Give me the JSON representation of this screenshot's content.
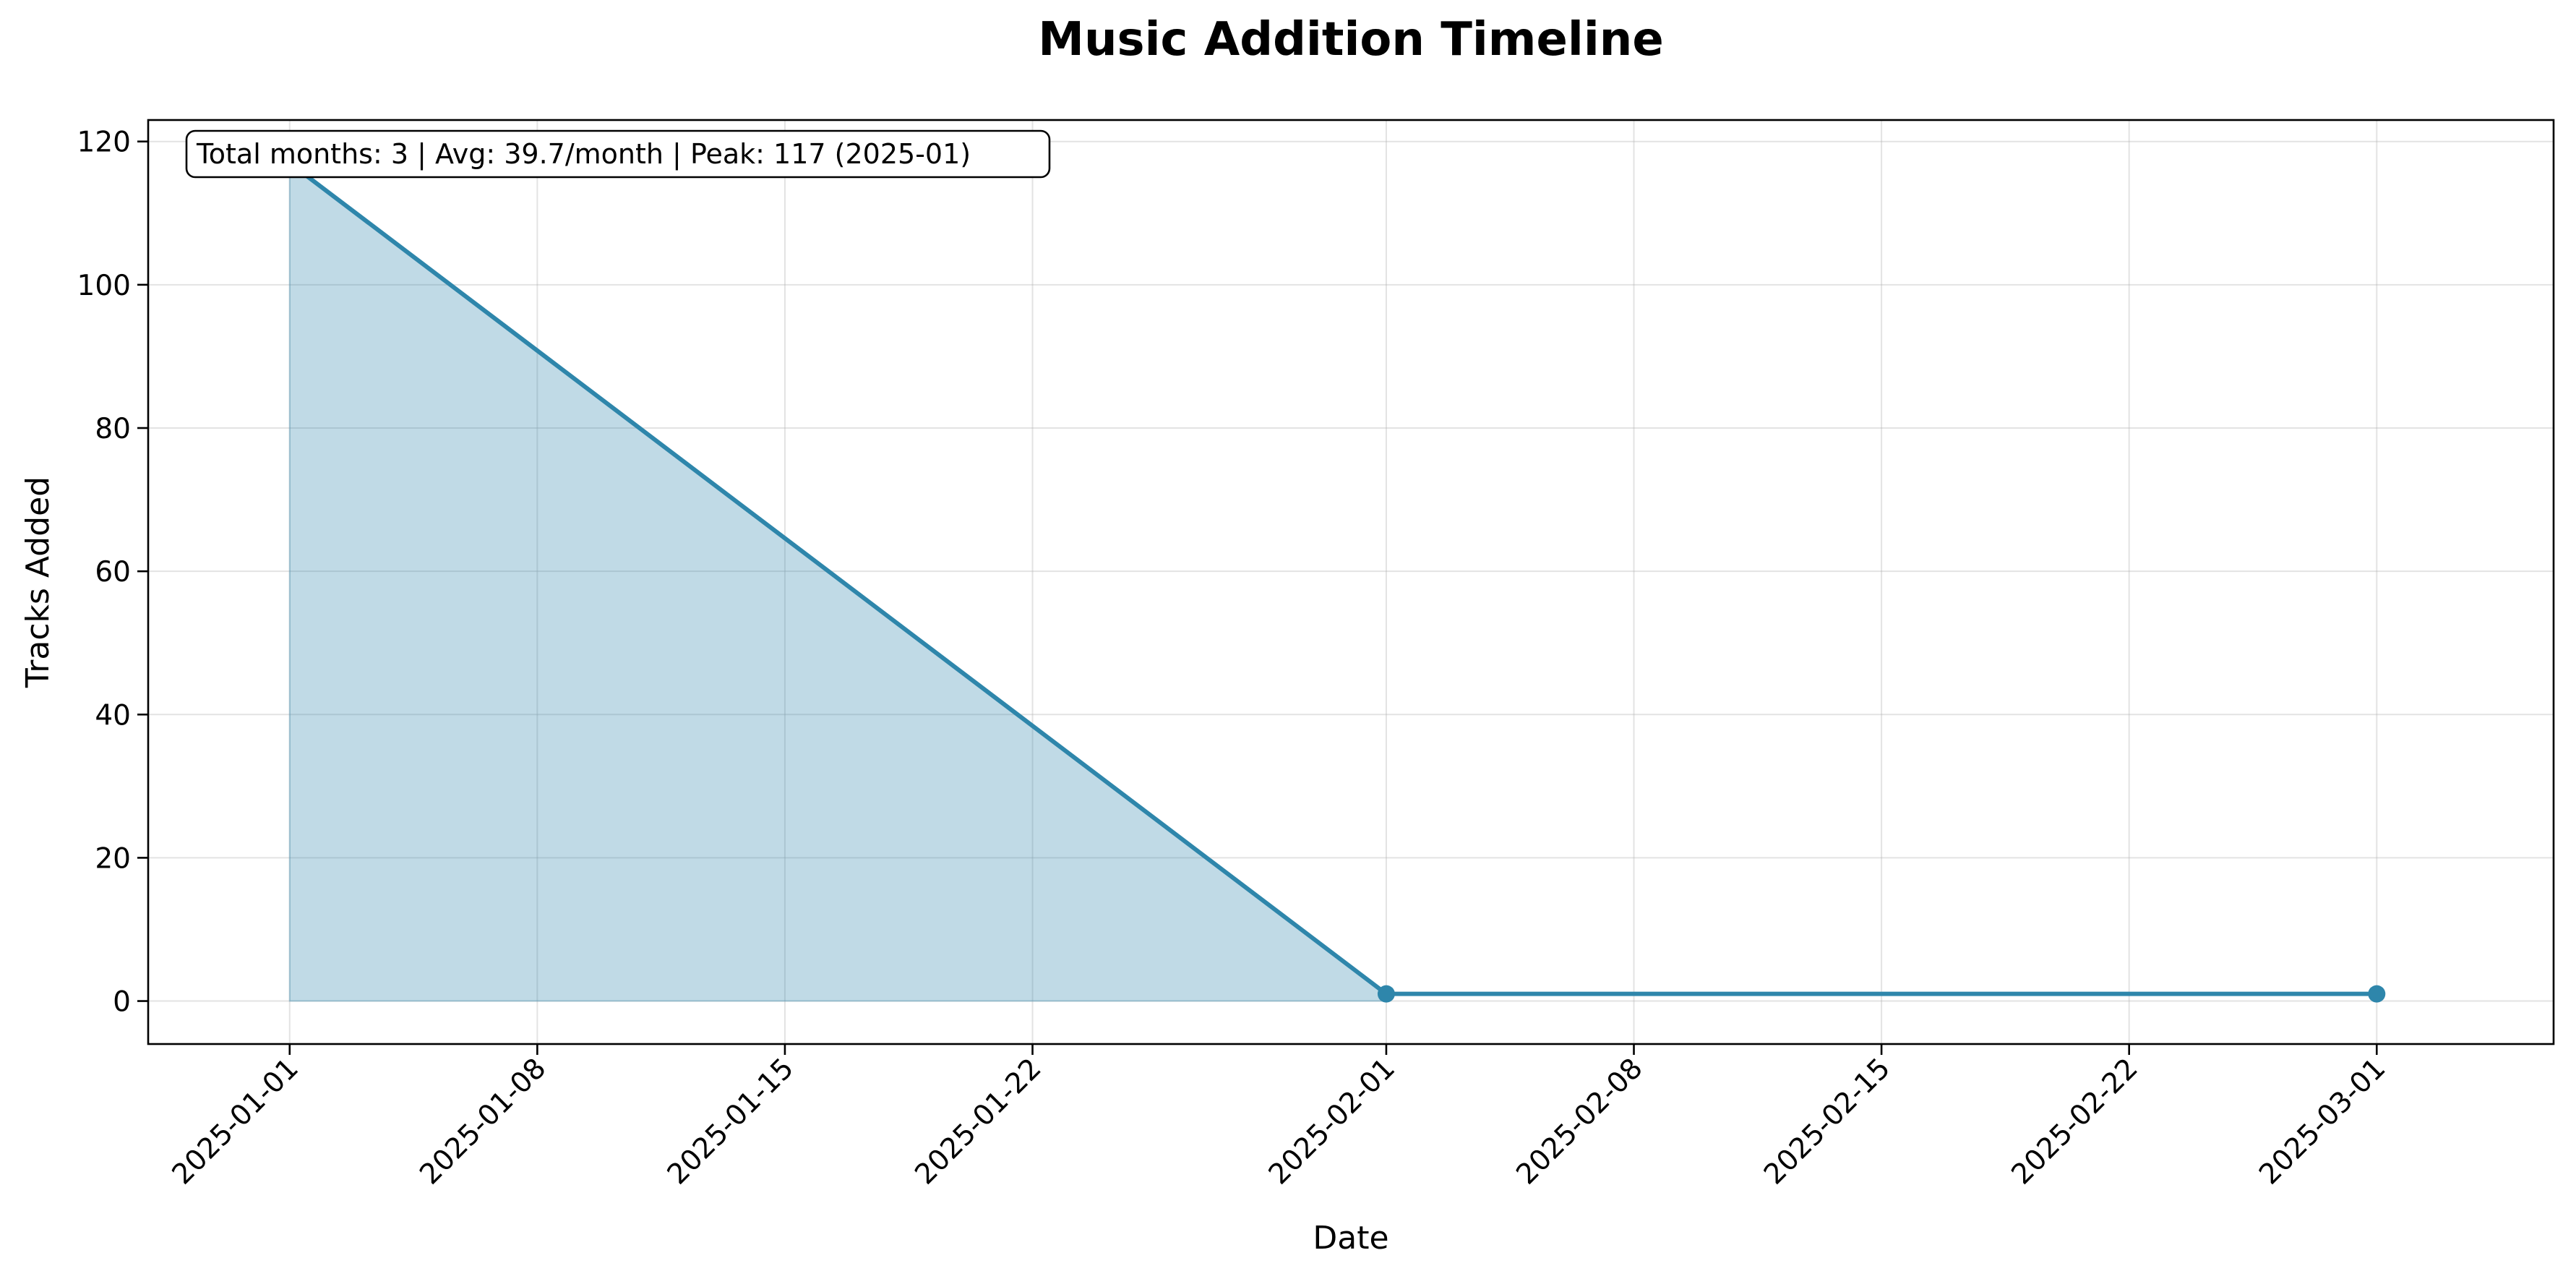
{
  "chart_data": {
    "type": "area",
    "title": "Music Addition Timeline",
    "xlabel": "Date",
    "ylabel": "Tracks Added",
    "x": [
      "2025-01-01",
      "2025-02-01",
      "2025-03-01"
    ],
    "series": [
      {
        "values": [
          117,
          1,
          1
        ]
      }
    ],
    "xlim": [
      "2024-12-28",
      "2025-03-06"
    ],
    "ylim": [
      -6,
      123
    ],
    "x_ticks": [
      "2025-01-01",
      "2025-01-08",
      "2025-01-15",
      "2025-01-22",
      "2025-02-01",
      "2025-02-08",
      "2025-02-15",
      "2025-02-22",
      "2025-03-01"
    ],
    "y_ticks": [
      0,
      20,
      40,
      60,
      80,
      100,
      120
    ],
    "grid": true,
    "legend": "none",
    "annotation": "Total months: 3 | Avg: 39.7/month | Peak: 117 (2025-01)",
    "colors": {
      "line": "#2e86ab",
      "fill": "#2e86ab"
    }
  }
}
